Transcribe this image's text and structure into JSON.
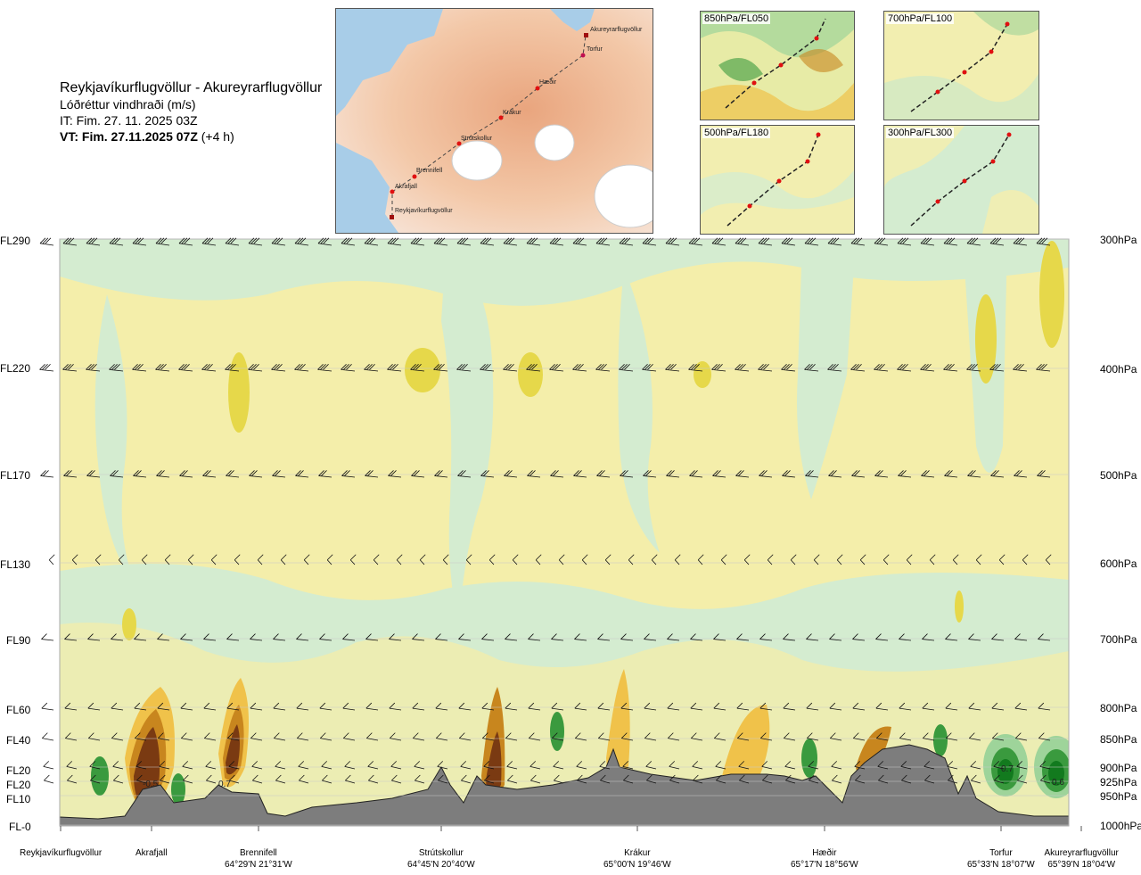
{
  "header": {
    "title": "Reykjavíkurflugvöllur - Akureyrarflugvöllur",
    "subtitle": "Lóðréttur vindhraði (m/s)",
    "issue_time": "IT: Fim. 27. 11. 2025 03Z",
    "valid_prefix": "VT: Fim. 27.11.2025 07Z",
    "valid_suffix": "(+4 h)"
  },
  "route_map": {
    "waypoints": [
      "Akureyrarflugvöllur",
      "Torfur",
      "Hæðir",
      "Krákur",
      "Strútskollur",
      "Brennifell",
      "Akrafjall",
      "Reykjavíkurflugvöllur"
    ]
  },
  "level_maps": [
    {
      "label": "850hPa/FL050"
    },
    {
      "label": "700hPa/FL100"
    },
    {
      "label": "500hPa/FL180"
    },
    {
      "label": "300hPa/FL300"
    }
  ],
  "chart_data": {
    "type": "heatmap",
    "title": "Lóðréttur vindhraði (m/s)",
    "y_flight_levels": [
      "FL290",
      "FL220",
      "FL170",
      "FL130",
      "FL90",
      "FL60",
      "FL40",
      "FL20",
      "FL20",
      "FL10",
      "FL-0"
    ],
    "y_pressure_levels": [
      "300hPa",
      "400hPa",
      "500hPa",
      "600hPa",
      "700hPa",
      "800hPa",
      "850hPa",
      "900hPa",
      "925hPa",
      "950hPa",
      "1000hPa"
    ],
    "x_locations": [
      {
        "name": "Reykjavíkurflugvöllur",
        "coord": ""
      },
      {
        "name": "Akrafjall",
        "coord": ""
      },
      {
        "name": "Brennifell",
        "coord": "64°29'N 21°31'W"
      },
      {
        "name": "Strútskollur",
        "coord": "64°45'N 20°40'W"
      },
      {
        "name": "Krákur",
        "coord": "65°00'N 19°46'W"
      },
      {
        "name": "Hæðir",
        "coord": "65°17'N 18°56'W"
      },
      {
        "name": "Torfur",
        "coord": "65°33'N 18°07'W"
      },
      {
        "name": "Akureyrarflugvöllur",
        "coord": "65°39'N 18°04'W"
      }
    ],
    "annotations": [
      "-0.5",
      "0.7",
      "0.7",
      "0.6"
    ],
    "colors": {
      "strong_down": "#7a3a12",
      "down": "#c8861e",
      "weak_down": "#f0c24a",
      "very_weak_down": "#f5eba4",
      "neutral": "#fbfbe4",
      "weak_up": "#d4ecd0",
      "up": "#9ed49a",
      "strong_up": "#3a9a3e",
      "terrain": "#7d7d7d"
    }
  }
}
